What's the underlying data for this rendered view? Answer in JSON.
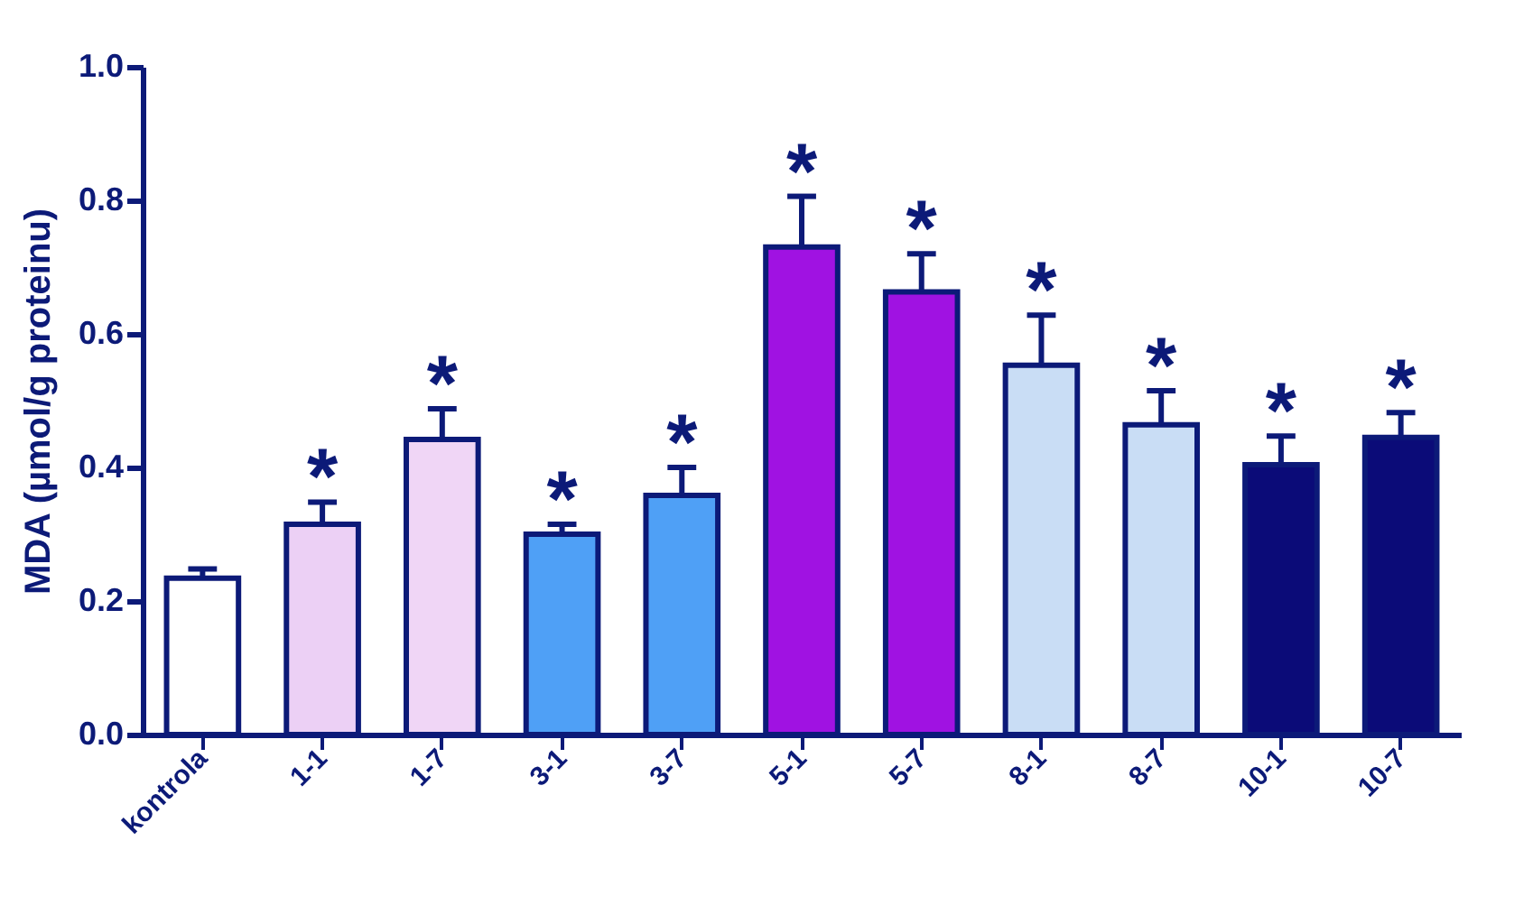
{
  "chart_data": {
    "type": "bar",
    "ylabel": "MDA (µmol/g proteinu)",
    "categories": [
      "kontrola",
      "1-1",
      "1-7",
      "3-1",
      "3-7",
      "5-1",
      "5-7",
      "8-1",
      "8-7",
      "10-1",
      "10-7"
    ],
    "values": [
      0.234,
      0.315,
      0.442,
      0.3,
      0.358,
      0.73,
      0.663,
      0.553,
      0.464,
      0.404,
      0.445
    ],
    "errors": [
      [
        0.234,
        0.248
      ],
      [
        0.315,
        0.348
      ],
      [
        0.442,
        0.488
      ],
      [
        0.3,
        0.315
      ],
      [
        0.358,
        0.4
      ],
      [
        0.73,
        0.806
      ],
      [
        0.663,
        0.72
      ],
      [
        0.553,
        0.628
      ],
      [
        0.464,
        0.515
      ],
      [
        0.404,
        0.447
      ],
      [
        0.445,
        0.482
      ]
    ],
    "colors": [
      "#ffffff",
      "#ecd0f5",
      "#f0d6f6",
      "#4fa0f6",
      "#4fa0f6",
      "#a012e2",
      "#a012e2",
      "#c9ddf5",
      "#c9ddf5",
      "#0b0b78",
      "#0b0b78"
    ],
    "ylim": [
      0,
      1
    ],
    "yticks": [
      {
        "value": 0,
        "label": "0.0"
      },
      {
        "value": 0.2,
        "label": "0.2"
      },
      {
        "value": 0.4,
        "label": "0.4"
      },
      {
        "value": 0.6,
        "label": "0.6"
      },
      {
        "value": 0.8,
        "label": "0.8"
      },
      {
        "value": 1,
        "label": "1.0"
      }
    ],
    "annotations": [
      {
        "text": "*",
        "x": "1-1",
        "y": 0.348
      },
      {
        "text": "*",
        "x": "1-7",
        "y": 0.488
      },
      {
        "text": "*",
        "x": "3-1",
        "y": 0.315
      },
      {
        "text": "*",
        "x": "3-7",
        "y": 0.4
      },
      {
        "text": "*",
        "x": "5-1",
        "y": 0.806
      },
      {
        "text": "*",
        "x": "5-7",
        "y": 0.72
      },
      {
        "text": "*",
        "x": "8-1",
        "y": 0.628
      },
      {
        "text": "*",
        "x": "8-7",
        "y": 0.515
      },
      {
        "text": "*",
        "x": "10-1",
        "y": 0.447
      },
      {
        "text": "*",
        "x": "10-7",
        "y": 0.482
      }
    ],
    "grid": false
  }
}
